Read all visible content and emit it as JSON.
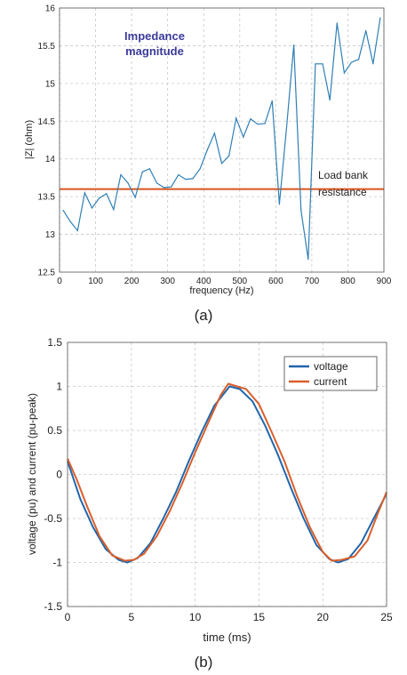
{
  "chart_data": [
    {
      "type": "line",
      "panel_label": "(a)",
      "xlabel": "frequency (Hz)",
      "ylabel": "|Z| (ohm)",
      "xlim": [
        0,
        900
      ],
      "ylim": [
        12.5,
        16
      ],
      "xticks": [
        0,
        100,
        200,
        300,
        400,
        500,
        600,
        700,
        800,
        900
      ],
      "yticks": [
        12.5,
        13,
        13.5,
        14,
        14.5,
        15,
        15.5,
        16
      ],
      "grid": true,
      "annotation_title": "Impedance\nmagnitude",
      "annotation_line": "Load bank\nresistance",
      "colors": {
        "impedance": "#2f7fb5",
        "resistance": "#d9541e",
        "title_text": "#3b3b9a"
      },
      "reference_line": {
        "y": 13.6
      },
      "series": [
        {
          "x": [
            10,
            30,
            50,
            70,
            90,
            110,
            130,
            150,
            170,
            190,
            210,
            230,
            250,
            270,
            290,
            310,
            330,
            350,
            370,
            390,
            410,
            430,
            450,
            470,
            490,
            510,
            530,
            550,
            570,
            590,
            610,
            630,
            650,
            670,
            690,
            710,
            730,
            750,
            770,
            790,
            810,
            830,
            850,
            870,
            890
          ],
          "values": [
            13.32,
            13.17,
            13.05,
            13.55,
            13.35,
            13.48,
            13.54,
            13.33,
            13.79,
            13.68,
            13.49,
            13.83,
            13.87,
            13.68,
            13.62,
            13.63,
            13.79,
            13.73,
            13.74,
            13.87,
            14.12,
            14.34,
            13.94,
            14.04,
            14.54,
            14.29,
            14.53,
            14.46,
            14.47,
            14.77,
            13.4,
            14.42,
            15.51,
            13.32,
            12.67,
            15.26,
            15.26,
            14.78,
            15.8,
            15.14,
            15.28,
            15.32,
            15.7,
            15.26,
            15.87
          ]
        }
      ]
    },
    {
      "type": "line",
      "panel_label": "(b)",
      "xlabel": "time (ms)",
      "ylabel": "voltage (pu) and current (pu-peak)",
      "xlim": [
        0,
        25
      ],
      "ylim": [
        -1.5,
        1.5
      ],
      "xticks": [
        0,
        5,
        10,
        15,
        20,
        25
      ],
      "yticks": [
        -1.5,
        -1,
        -0.5,
        0,
        0.5,
        1,
        1.5
      ],
      "grid": true,
      "legend_position": "top-right",
      "series": [
        {
          "name": "voltage",
          "color": "#2166ac",
          "x": [
            0,
            1,
            2,
            3,
            4,
            4.7,
            5.5,
            6.5,
            7.5,
            8.5,
            9.5,
            10.5,
            11.5,
            12.7,
            13.5,
            14.5,
            15.5,
            16.5,
            17.5,
            18.5,
            19.5,
            20.5,
            21.2,
            22,
            23,
            24,
            25
          ],
          "values": [
            0.15,
            -0.28,
            -0.6,
            -0.85,
            -0.97,
            -1.0,
            -0.95,
            -0.78,
            -0.5,
            -0.2,
            0.15,
            0.48,
            0.78,
            1.0,
            0.97,
            0.83,
            0.55,
            0.22,
            -0.15,
            -0.5,
            -0.8,
            -0.96,
            -1.0,
            -0.96,
            -0.78,
            -0.5,
            -0.22
          ]
        },
        {
          "name": "current",
          "color": "#d95f2b",
          "x": [
            0,
            0.7,
            1.5,
            2.5,
            3.5,
            4.5,
            5.2,
            6,
            7,
            8,
            9,
            10,
            11,
            12,
            12.6,
            13.3,
            14,
            15,
            16,
            17,
            18,
            19,
            20,
            20.7,
            21.5,
            22.5,
            23.5,
            24.3,
            25
          ],
          "values": [
            0.18,
            -0.05,
            -0.35,
            -0.7,
            -0.92,
            -0.98,
            -0.97,
            -0.9,
            -0.7,
            -0.42,
            -0.1,
            0.25,
            0.58,
            0.9,
            1.03,
            1.0,
            0.97,
            0.8,
            0.48,
            0.15,
            -0.25,
            -0.6,
            -0.88,
            -0.98,
            -0.97,
            -0.93,
            -0.75,
            -0.45,
            -0.2
          ]
        }
      ]
    }
  ]
}
